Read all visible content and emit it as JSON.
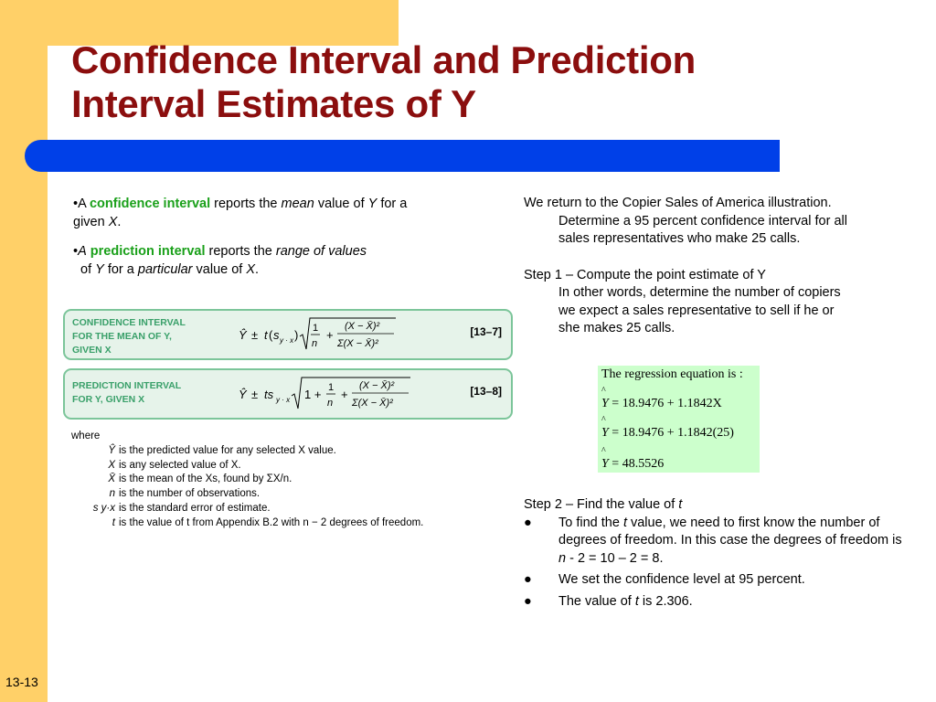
{
  "slide": {
    "title_line1": "Confidence Interval and Prediction",
    "title_line2": "Interval Estimates of Y",
    "slide_number": "13-13"
  },
  "left": {
    "p1_a": "•A ",
    "p1_term": "confidence interval",
    "p1_b": " reports the ",
    "p1_c": "mean",
    "p1_d": " value of ",
    "p1_e": "Y",
    "p1_f": " for a",
    "p1_g": "given ",
    "p1_h": "X",
    "p1_i": ".",
    "p2_a": "•",
    "p2_b": "A",
    "p2_term": "prediction interval",
    "p2_c": " reports the ",
    "p2_d": "range of values",
    "p2_e": "of ",
    "p2_f": "Y",
    "p2_g": " for a ",
    "p2_h": "particular",
    "p2_i": " value of ",
    "p2_j": "X",
    "p2_k": "."
  },
  "boxes": {
    "ci_label_1": "CONFIDENCE INTERVAL",
    "ci_label_2": "FOR THE MEAN OF Y,",
    "ci_label_3": "GIVEN X",
    "ci_ref": "[13–7]",
    "pi_label_1": "PREDICTION INTERVAL",
    "pi_label_2": "FOR Y, GIVEN X",
    "pi_ref": "[13–8]"
  },
  "where": {
    "heading": "where",
    "rows": [
      {
        "sym": "Ŷ",
        "text": "is the predicted value for any selected X value."
      },
      {
        "sym": "X",
        "text": "is any selected value of X."
      },
      {
        "sym": "X̄",
        "text": "is the mean of the Xs, found by ΣX/n."
      },
      {
        "sym": "n",
        "text": "is the number of observations."
      },
      {
        "sym": "s y·x",
        "text": "is the standard error of estimate."
      },
      {
        "sym": "t",
        "text": "is the value of t from Appendix B.2 with n − 2 degrees of freedom."
      }
    ]
  },
  "right": {
    "intro_1": "We return to the Copier Sales of America illustration.",
    "intro_2": "Determine a 95 percent confidence interval for all",
    "intro_3": "sales representatives who make 25 calls.",
    "step1": "Step 1 – Compute the point estimate of Y",
    "step1_d1": "In other words, determine the number of copiers",
    "step1_d2": "we expect a sales representative to sell if he or",
    "step1_d3": "she makes 25 calls.",
    "reg_title": "The regression equation is :",
    "reg_1": "= 18.9476 + 1.1842X",
    "reg_2": "= 18.9476 + 1.1842(25)",
    "reg_3": "= 48.5526",
    "reg_var": "Y",
    "step2_a": "Step 2 – Find the value of ",
    "step2_b": "t",
    "bullets": [
      {
        "a": "To find the ",
        "b": "t",
        "c": " value, we need to first know the number of degrees of freedom. In this case the degrees of freedom is ",
        "d": "n",
        "e": " - 2 = 10 – 2 = 8."
      },
      {
        "a": "We set the confidence level at 95 percent.",
        "b": "",
        "c": "",
        "d": "",
        "e": ""
      },
      {
        "a": "The value of ",
        "b": "t",
        "c": " is 2.306.",
        "d": "",
        "e": ""
      }
    ],
    "bullet_glyph": "●"
  }
}
